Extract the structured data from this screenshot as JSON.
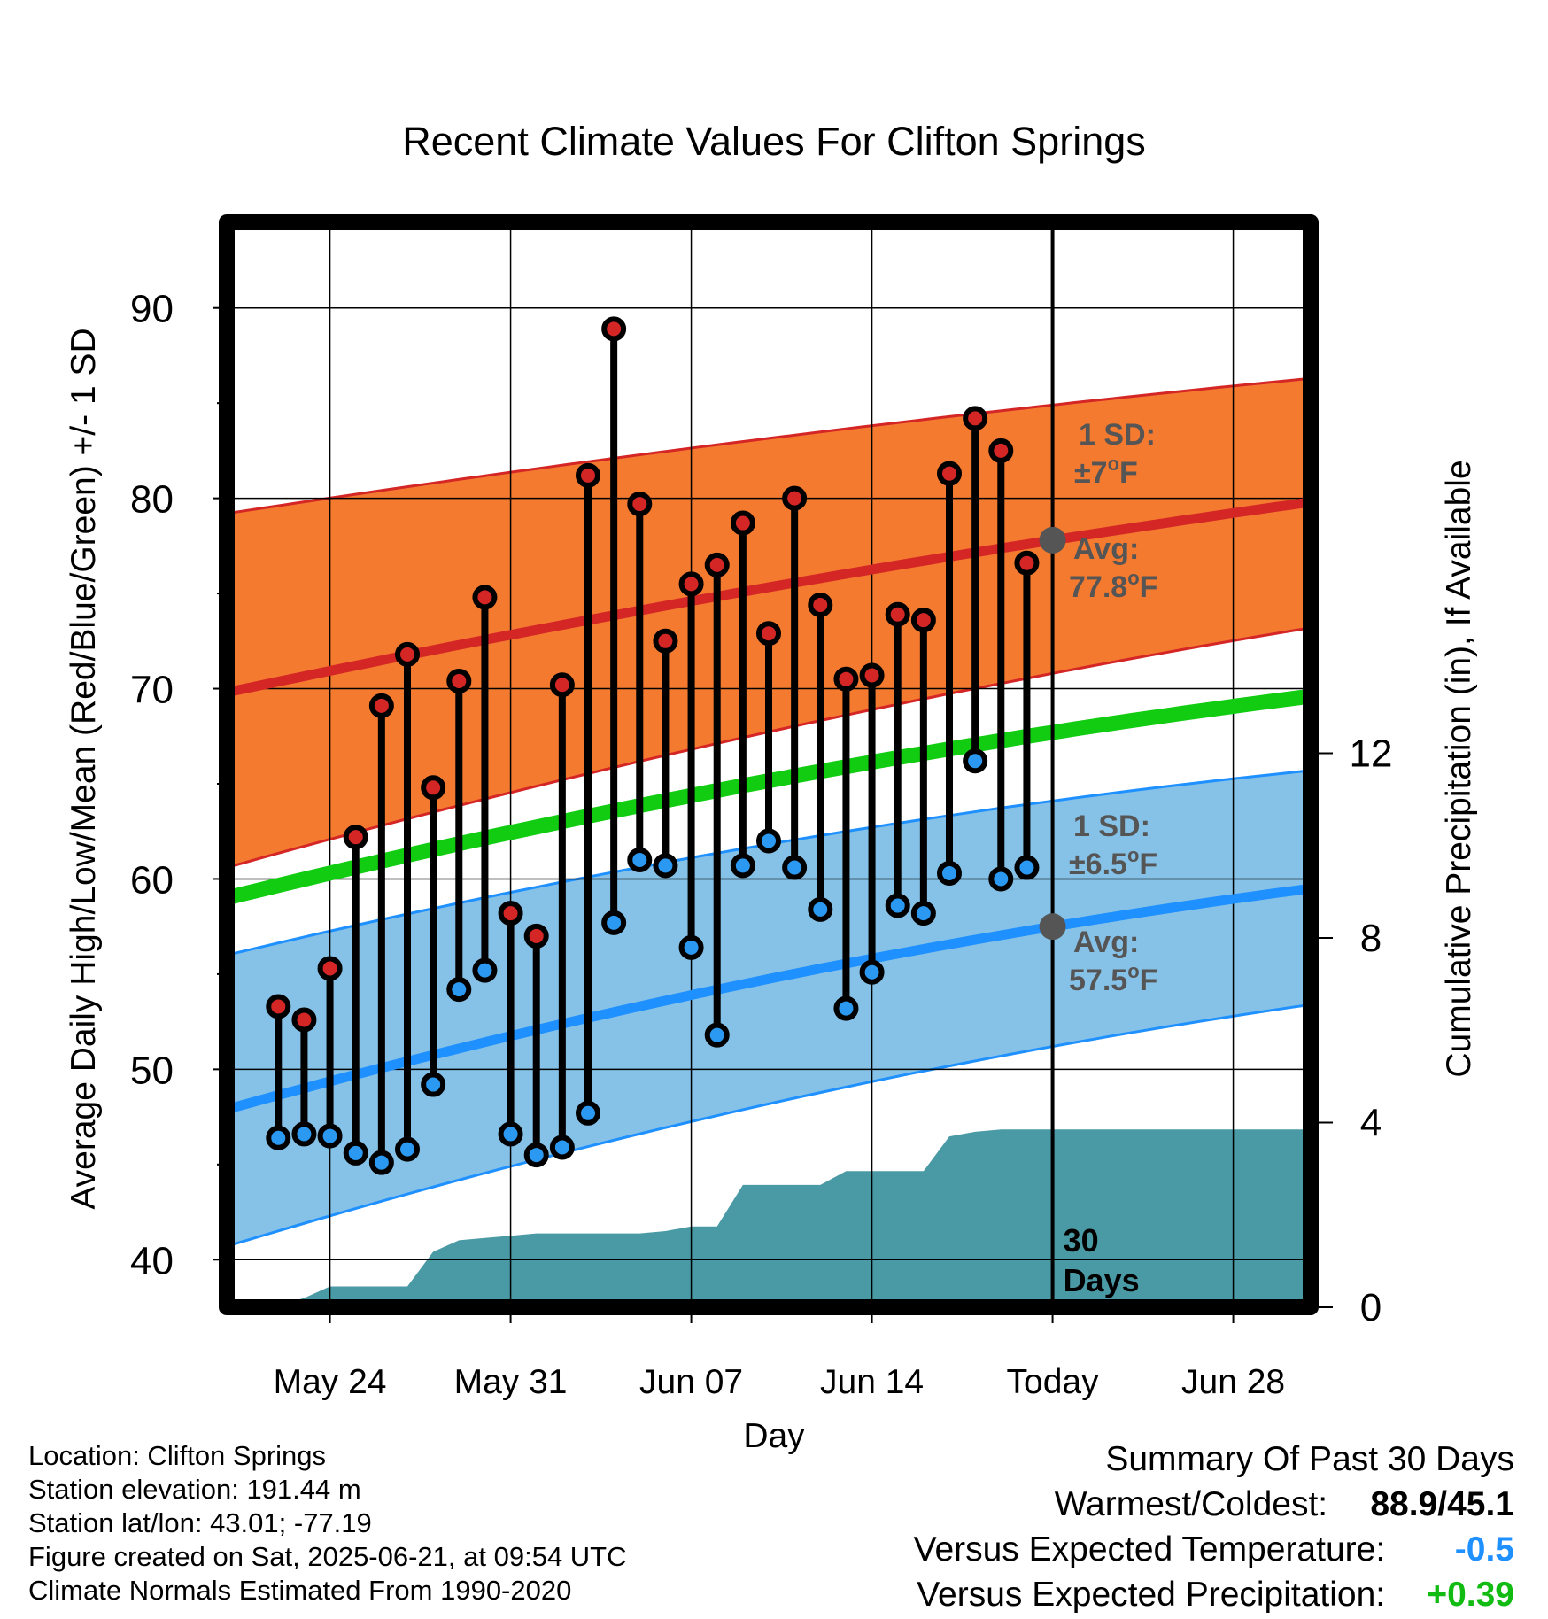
{
  "chart_data": {
    "type": "line",
    "title": "Recent Climate Values For Clifton Springs",
    "xlabel": "Day",
    "ylabel": "Average Daily High/Low/Mean (Red/Blue/Green) +/- 1 SD",
    "y2label": "Cumulative Precipitation (in), If Available",
    "ylim": [
      37.5,
      94.5
    ],
    "y2lim": [
      0,
      23.5
    ],
    "yticks": [
      40,
      50,
      60,
      70,
      80,
      90
    ],
    "y2ticks": [
      0,
      4,
      8,
      12
    ],
    "xlim": [
      "2025-05-20",
      "2025-07-01"
    ],
    "xticks": [
      {
        "date": "2025-05-24",
        "label": "May 24"
      },
      {
        "date": "2025-05-31",
        "label": "May 31"
      },
      {
        "date": "2025-06-07",
        "label": "Jun 07"
      },
      {
        "date": "2025-06-14",
        "label": "Jun 14"
      },
      {
        "date": "2025-06-21",
        "label": "Today"
      },
      {
        "date": "2025-06-28",
        "label": "Jun 28"
      }
    ],
    "grid": true,
    "today": "2025-06-21",
    "window_label": [
      "30",
      "Days"
    ],
    "days": [
      "2025-05-22",
      "2025-05-23",
      "2025-05-24",
      "2025-05-25",
      "2025-05-26",
      "2025-05-27",
      "2025-05-28",
      "2025-05-29",
      "2025-05-30",
      "2025-05-31",
      "2025-06-01",
      "2025-06-02",
      "2025-06-03",
      "2025-06-04",
      "2025-06-05",
      "2025-06-06",
      "2025-06-07",
      "2025-06-08",
      "2025-06-09",
      "2025-06-10",
      "2025-06-11",
      "2025-06-12",
      "2025-06-13",
      "2025-06-14",
      "2025-06-15",
      "2025-06-16",
      "2025-06-17",
      "2025-06-18",
      "2025-06-19",
      "2025-06-20"
    ],
    "highs": [
      53.3,
      52.6,
      55.3,
      62.2,
      69.1,
      71.8,
      64.8,
      70.4,
      74.8,
      58.2,
      57.0,
      70.2,
      81.2,
      88.9,
      79.7,
      72.5,
      75.5,
      76.5,
      78.7,
      72.9,
      80.0,
      74.4,
      70.5,
      70.7,
      73.9,
      73.6,
      81.3,
      84.2,
      82.5,
      76.6
    ],
    "lows": [
      46.4,
      46.6,
      46.5,
      45.6,
      45.1,
      45.8,
      49.2,
      54.2,
      55.2,
      46.6,
      45.5,
      45.9,
      47.7,
      57.7,
      61.0,
      60.7,
      56.4,
      51.8,
      60.7,
      62.0,
      60.6,
      58.4,
      53.2,
      55.1,
      58.6,
      58.2,
      60.3,
      66.2,
      60.0,
      60.6
    ],
    "normals": {
      "dates": [
        "2025-05-20",
        "2025-06-21",
        "2025-07-01"
      ],
      "avg_high": [
        69.8,
        77.8,
        79.8
      ],
      "high_sd_upper": [
        79.2,
        84.9,
        86.3
      ],
      "high_sd_lower": [
        60.6,
        70.8,
        73.2
      ],
      "avg_mean": [
        59.0,
        67.7,
        69.6
      ],
      "avg_low": [
        47.9,
        57.5,
        59.5
      ],
      "low_sd_upper": [
        56.0,
        64.1,
        65.7
      ],
      "low_sd_lower": [
        40.7,
        51.2,
        53.4
      ]
    },
    "precip": {
      "dates": [
        "2025-05-20",
        "2025-05-21",
        "2025-05-22",
        "2025-05-23",
        "2025-05-24",
        "2025-05-25",
        "2025-05-26",
        "2025-05-27",
        "2025-05-28",
        "2025-05-29",
        "2025-05-30",
        "2025-05-31",
        "2025-06-01",
        "2025-06-02",
        "2025-06-03",
        "2025-06-04",
        "2025-06-05",
        "2025-06-06",
        "2025-06-07",
        "2025-06-08",
        "2025-06-09",
        "2025-06-10",
        "2025-06-11",
        "2025-06-12",
        "2025-06-13",
        "2025-06-14",
        "2025-06-15",
        "2025-06-16",
        "2025-06-17",
        "2025-06-18",
        "2025-06-19",
        "2025-06-20",
        "2025-06-21",
        "2025-07-01"
      ],
      "values": [
        0,
        0,
        0.05,
        0.2,
        0.45,
        0.45,
        0.45,
        0.45,
        1.2,
        1.45,
        1.5,
        1.55,
        1.6,
        1.6,
        1.6,
        1.6,
        1.6,
        1.65,
        1.75,
        1.75,
        2.65,
        2.65,
        2.65,
        2.65,
        2.95,
        2.95,
        2.95,
        2.95,
        3.7,
        3.8,
        3.85,
        3.85,
        3.85,
        3.85
      ]
    },
    "annotations": {
      "high_sd": {
        "line1": "1 SD:",
        "line2": "±7",
        "unit": "oF"
      },
      "high_avg": {
        "line1": "Avg:",
        "line2": "77.8",
        "unit": "oF"
      },
      "low_sd": {
        "line1": "1 SD:",
        "line2": "±6.5",
        "unit": "oF"
      },
      "low_avg": {
        "line1": "Avg:",
        "line2": "57.5",
        "unit": "oF"
      }
    }
  },
  "colors": {
    "high_band": "#f47a30",
    "high_line": "#d52626",
    "mean_line": "#11cc11",
    "low_band": "#86c2e8",
    "low_line": "#1e90ff",
    "precip": "#4a9aa5",
    "annotation": "#555555",
    "high_dot": "#d52626",
    "low_dot": "#2b99f1",
    "anomaly_temp": "#1e90ff",
    "anomaly_precip": "#11bb11"
  },
  "meta": {
    "location": "Location: Clifton Springs",
    "elevation": "Station elevation: 191.44 m",
    "latlon": "Station lat/lon: 43.01; -77.19",
    "created": "Figure created on Sat, 2025-06-21, at 09:54 UTC",
    "normals": "Climate Normals Estimated From 1990-2020"
  },
  "summary": {
    "title": "Summary Of Past 30 Days",
    "warm_cold_label": "Warmest/Coldest:",
    "warm_cold_value": "88.9/45.1",
    "temp_label": "Versus Expected Temperature:",
    "temp_value": "-0.5",
    "precip_label": "Versus Expected Precipitation:",
    "precip_value": "+0.39"
  }
}
